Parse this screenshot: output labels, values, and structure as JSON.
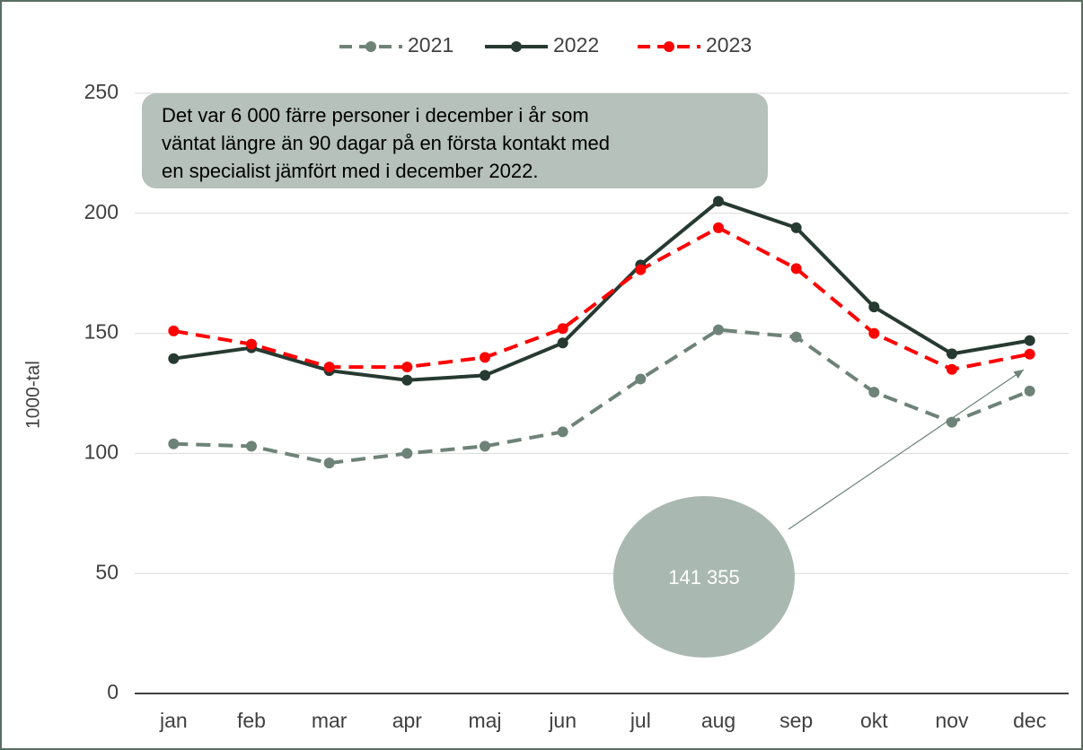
{
  "chart_data": {
    "type": "line",
    "categories": [
      "jan",
      "feb",
      "mar",
      "apr",
      "maj",
      "jun",
      "jul",
      "aug",
      "sep",
      "okt",
      "nov",
      "dec"
    ],
    "series": [
      {
        "name": "2021",
        "color": "#6e8378",
        "dash": true,
        "values": [
          104,
          103,
          96,
          100,
          103,
          109,
          131,
          151.5,
          148.5,
          125.5,
          113,
          126
        ]
      },
      {
        "name": "2022",
        "color": "#263a31",
        "dash": false,
        "values": [
          139.5,
          144,
          134.5,
          130.5,
          132.5,
          146,
          178.5,
          205,
          194,
          161,
          141.5,
          147
        ]
      },
      {
        "name": "2023",
        "color": "#ff0000",
        "dash": true,
        "values": [
          151,
          145.5,
          136,
          136,
          140,
          152,
          176.5,
          194,
          177,
          150,
          135,
          141.355
        ]
      }
    ],
    "ylabel": "1000-tal",
    "ylim": [
      0,
      250
    ],
    "yticks": [
      0,
      50,
      100,
      150,
      200,
      250
    ],
    "grid": true,
    "annotations": {
      "note": [
        "Det var 6 000 färre personer i december i år som",
        "väntat längre än 90 dagar på en första kontakt med",
        "en specialist jämfört med i december 2022."
      ],
      "bubble": "141 355"
    }
  }
}
